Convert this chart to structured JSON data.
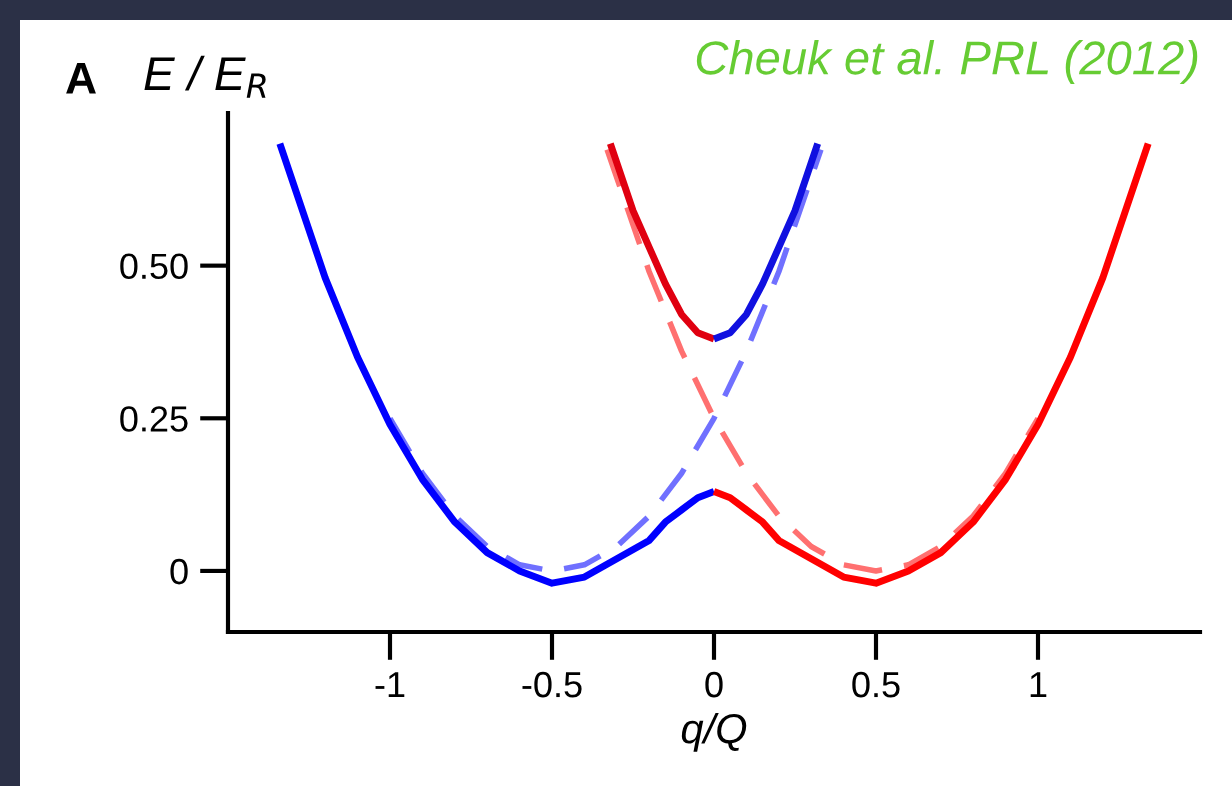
{
  "chart_data": {
    "type": "line",
    "ylabel": "E / E$_{R}$",
    "xlabel": "q/Q",
    "annotations": [
      "A",
      "Cheuk et al. PRL (2012)"
    ],
    "xlim": [
      -1.5,
      1.5
    ],
    "xticks": [
      -1,
      -0.5,
      0,
      0.5,
      1
    ],
    "ylim": [
      -0.1,
      0.75
    ],
    "yticks": [
      0,
      0.25,
      {
        "value": 0.5,
        "label": "0.50"
      }
    ],
    "marker": "none",
    "series": [
      {
        "color": "#0000ff",
        "line_style": "solid",
        "x": [
          -1.34,
          -1.2,
          -1.1,
          -1.0,
          -0.9,
          -0.8,
          -0.7,
          -0.6,
          -0.5,
          -0.4,
          -0.3,
          -0.2,
          -0.15,
          -0.1,
          -0.05,
          0
        ],
        "values": [
          0.7,
          0.48,
          0.35,
          0.24,
          0.15,
          0.08,
          0.03,
          0.0,
          -0.02,
          -0.01,
          0.02,
          0.05,
          0.08,
          0.1,
          0.12,
          0.13
        ]
      },
      {
        "color": "#ff0000",
        "line_style": "solid",
        "x": [
          0,
          0.05,
          0.1,
          0.15,
          0.2,
          0.3,
          0.4,
          0.5,
          0.6,
          0.7,
          0.8,
          0.9,
          1.0,
          1.1,
          1.2,
          1.34
        ],
        "values": [
          0.13,
          0.12,
          0.1,
          0.08,
          0.05,
          0.02,
          -0.01,
          -0.02,
          0.0,
          0.03,
          0.08,
          0.15,
          0.24,
          0.35,
          0.48,
          0.7
        ]
      },
      {
        "color": "#e00010",
        "line_style": "solid",
        "x": [
          -0.32,
          -0.25,
          -0.2,
          -0.15,
          -0.1,
          -0.05,
          0
        ],
        "values": [
          0.7,
          0.59,
          0.53,
          0.47,
          0.42,
          0.39,
          0.38
        ]
      },
      {
        "color": "#1010e0",
        "line_style": "solid",
        "x": [
          0,
          0.05,
          0.1,
          0.15,
          0.2,
          0.25,
          0.32
        ],
        "values": [
          0.38,
          0.39,
          0.42,
          0.47,
          0.53,
          0.59,
          0.7
        ]
      },
      {
        "color": "#7070ff",
        "line_style": "dashed",
        "x": [
          -1.0,
          -0.9,
          -0.8,
          -0.7,
          -0.6,
          -0.5,
          -0.4,
          -0.3,
          -0.2,
          -0.1,
          0,
          0.1,
          0.2,
          0.33
        ],
        "values": [
          0.25,
          0.16,
          0.09,
          0.04,
          0.01,
          0.0,
          0.01,
          0.04,
          0.09,
          0.16,
          0.25,
          0.36,
          0.49,
          0.69
        ]
      },
      {
        "color": "#ff7070",
        "line_style": "dashed",
        "x": [
          -0.33,
          -0.2,
          -0.1,
          0,
          0.1,
          0.2,
          0.3,
          0.4,
          0.5,
          0.6,
          0.7,
          0.8,
          0.9,
          1.0
        ],
        "values": [
          0.69,
          0.49,
          0.36,
          0.25,
          0.16,
          0.09,
          0.04,
          0.01,
          0.0,
          0.01,
          0.04,
          0.09,
          0.16,
          0.25
        ]
      }
    ]
  }
}
